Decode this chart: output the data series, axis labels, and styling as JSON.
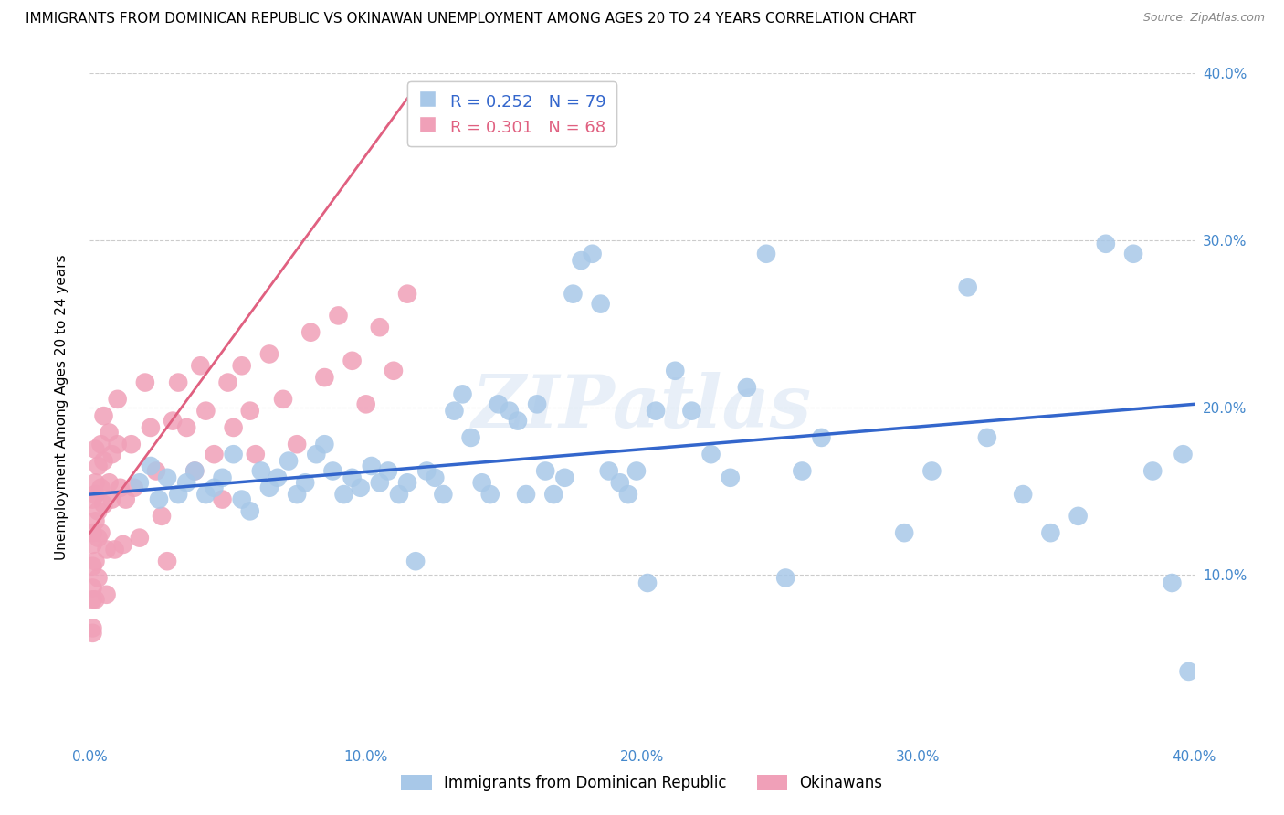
{
  "title": "IMMIGRANTS FROM DOMINICAN REPUBLIC VS OKINAWAN UNEMPLOYMENT AMONG AGES 20 TO 24 YEARS CORRELATION CHART",
  "source": "Source: ZipAtlas.com",
  "ylabel": "Unemployment Among Ages 20 to 24 years",
  "xlim": [
    0.0,
    0.4
  ],
  "ylim": [
    0.0,
    0.4
  ],
  "xticks": [
    0.0,
    0.1,
    0.2,
    0.3,
    0.4
  ],
  "yticks": [
    0.1,
    0.2,
    0.3,
    0.4
  ],
  "xticklabels": [
    "0.0%",
    "10.0%",
    "20.0%",
    "30.0%",
    "40.0%"
  ],
  "yticklabels_right": [
    "10.0%",
    "20.0%",
    "30.0%",
    "40.0%"
  ],
  "blue_R": 0.252,
  "blue_N": 79,
  "pink_R": 0.301,
  "pink_N": 68,
  "blue_color": "#a8c8e8",
  "pink_color": "#f0a0b8",
  "blue_line_color": "#3366cc",
  "pink_line_color": "#e06080",
  "watermark": "ZIPatlas",
  "legend_label_blue": "Immigrants from Dominican Republic",
  "legend_label_pink": "Okinawans",
  "blue_trend_x0": 0.0,
  "blue_trend_x1": 0.4,
  "blue_trend_y0": 0.148,
  "blue_trend_y1": 0.202,
  "pink_trend_x0": 0.0,
  "pink_trend_x1": 0.115,
  "pink_trend_y0": 0.125,
  "pink_trend_y1": 0.385,
  "background_color": "#ffffff",
  "grid_color": "#cccccc",
  "tick_color": "#4488cc",
  "title_fontsize": 11,
  "axis_label_fontsize": 11,
  "tick_fontsize": 11,
  "legend_fontsize": 12,
  "blue_scatter_x": [
    0.018,
    0.022,
    0.025,
    0.028,
    0.032,
    0.035,
    0.038,
    0.042,
    0.045,
    0.048,
    0.052,
    0.055,
    0.058,
    0.062,
    0.065,
    0.068,
    0.072,
    0.075,
    0.078,
    0.082,
    0.085,
    0.088,
    0.092,
    0.095,
    0.098,
    0.102,
    0.105,
    0.108,
    0.112,
    0.115,
    0.118,
    0.122,
    0.125,
    0.128,
    0.132,
    0.135,
    0.138,
    0.142,
    0.145,
    0.148,
    0.152,
    0.155,
    0.158,
    0.162,
    0.165,
    0.168,
    0.172,
    0.175,
    0.178,
    0.182,
    0.185,
    0.188,
    0.192,
    0.195,
    0.198,
    0.202,
    0.205,
    0.212,
    0.218,
    0.225,
    0.232,
    0.238,
    0.245,
    0.252,
    0.258,
    0.265,
    0.295,
    0.305,
    0.318,
    0.325,
    0.338,
    0.348,
    0.358,
    0.368,
    0.378,
    0.385,
    0.392,
    0.396,
    0.398
  ],
  "blue_scatter_y": [
    0.155,
    0.165,
    0.145,
    0.158,
    0.148,
    0.155,
    0.162,
    0.148,
    0.152,
    0.158,
    0.172,
    0.145,
    0.138,
    0.162,
    0.152,
    0.158,
    0.168,
    0.148,
    0.155,
    0.172,
    0.178,
    0.162,
    0.148,
    0.158,
    0.152,
    0.165,
    0.155,
    0.162,
    0.148,
    0.155,
    0.108,
    0.162,
    0.158,
    0.148,
    0.198,
    0.208,
    0.182,
    0.155,
    0.148,
    0.202,
    0.198,
    0.192,
    0.148,
    0.202,
    0.162,
    0.148,
    0.158,
    0.268,
    0.288,
    0.292,
    0.262,
    0.162,
    0.155,
    0.148,
    0.162,
    0.095,
    0.198,
    0.222,
    0.198,
    0.172,
    0.158,
    0.212,
    0.292,
    0.098,
    0.162,
    0.182,
    0.125,
    0.162,
    0.272,
    0.182,
    0.148,
    0.125,
    0.135,
    0.298,
    0.292,
    0.162,
    0.095,
    0.172,
    0.042
  ],
  "pink_scatter_x": [
    0.001,
    0.001,
    0.001,
    0.001,
    0.001,
    0.001,
    0.001,
    0.001,
    0.002,
    0.002,
    0.002,
    0.002,
    0.002,
    0.002,
    0.003,
    0.003,
    0.003,
    0.003,
    0.004,
    0.004,
    0.004,
    0.005,
    0.005,
    0.005,
    0.006,
    0.006,
    0.007,
    0.007,
    0.008,
    0.008,
    0.009,
    0.01,
    0.01,
    0.011,
    0.012,
    0.013,
    0.015,
    0.016,
    0.018,
    0.02,
    0.022,
    0.024,
    0.026,
    0.028,
    0.03,
    0.032,
    0.035,
    0.038,
    0.04,
    0.042,
    0.045,
    0.048,
    0.05,
    0.052,
    0.055,
    0.058,
    0.06,
    0.065,
    0.07,
    0.075,
    0.08,
    0.085,
    0.09,
    0.095,
    0.1,
    0.105,
    0.11,
    0.115
  ],
  "pink_scatter_y": [
    0.125,
    0.105,
    0.085,
    0.065,
    0.145,
    0.118,
    0.092,
    0.068,
    0.155,
    0.132,
    0.108,
    0.085,
    0.175,
    0.148,
    0.122,
    0.098,
    0.165,
    0.138,
    0.178,
    0.152,
    0.125,
    0.195,
    0.168,
    0.142,
    0.115,
    0.088,
    0.185,
    0.155,
    0.172,
    0.145,
    0.115,
    0.205,
    0.178,
    0.152,
    0.118,
    0.145,
    0.178,
    0.152,
    0.122,
    0.215,
    0.188,
    0.162,
    0.135,
    0.108,
    0.192,
    0.215,
    0.188,
    0.162,
    0.225,
    0.198,
    0.172,
    0.145,
    0.215,
    0.188,
    0.225,
    0.198,
    0.172,
    0.232,
    0.205,
    0.178,
    0.245,
    0.218,
    0.255,
    0.228,
    0.202,
    0.248,
    0.222,
    0.268
  ]
}
